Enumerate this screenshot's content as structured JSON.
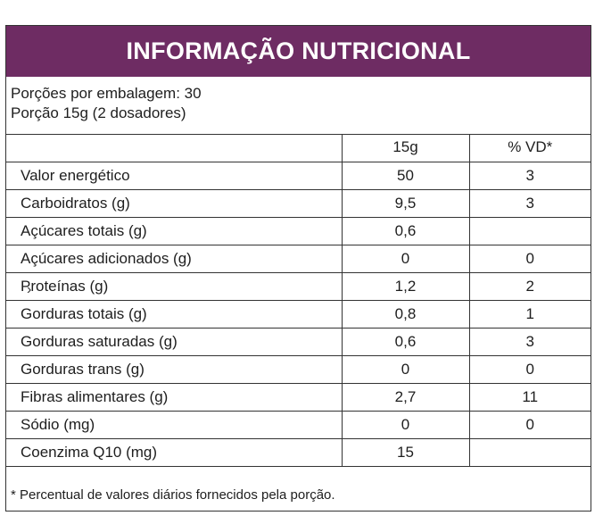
{
  "title": "INFORMAÇÃO NUTRICIONAL",
  "servings": {
    "per_package": "Porções por embalagem: 30",
    "portion": "Porção 15g (2 dosadores)"
  },
  "table": {
    "headers": [
      "",
      "15g",
      "% VD*"
    ],
    "rows": [
      [
        "Valor energético",
        "50",
        "3"
      ],
      [
        "Carboidratos (g)",
        "9,5",
        "3"
      ],
      [
        "Açúcares totais (g)",
        "0,6",
        ""
      ],
      [
        "Açúcares adicionados (g)",
        "0",
        "0"
      ],
      [
        "Proteínas (g)",
        "1,2",
        "2"
      ],
      [
        "Gorduras totais (g)",
        "0,8",
        "1"
      ],
      [
        "Gorduras saturadas (g)",
        "0,6",
        "3"
      ],
      [
        "Gorduras trans (g)",
        "0",
        "0"
      ],
      [
        "Fibras alimentares (g)",
        "2,7",
        "11"
      ],
      [
        "Sódio (mg)",
        "0",
        "0"
      ],
      [
        "Coenzima Q10 (mg)",
        "15",
        ""
      ]
    ]
  },
  "footnote": "* Percentual de valores diários fornecidos pela porção.",
  "colors": {
    "header_bg": "#6e2c63",
    "header_text": "#ffffff",
    "border": "#333333"
  },
  "icons": {
    "cursor": "chevron-right-icon"
  }
}
